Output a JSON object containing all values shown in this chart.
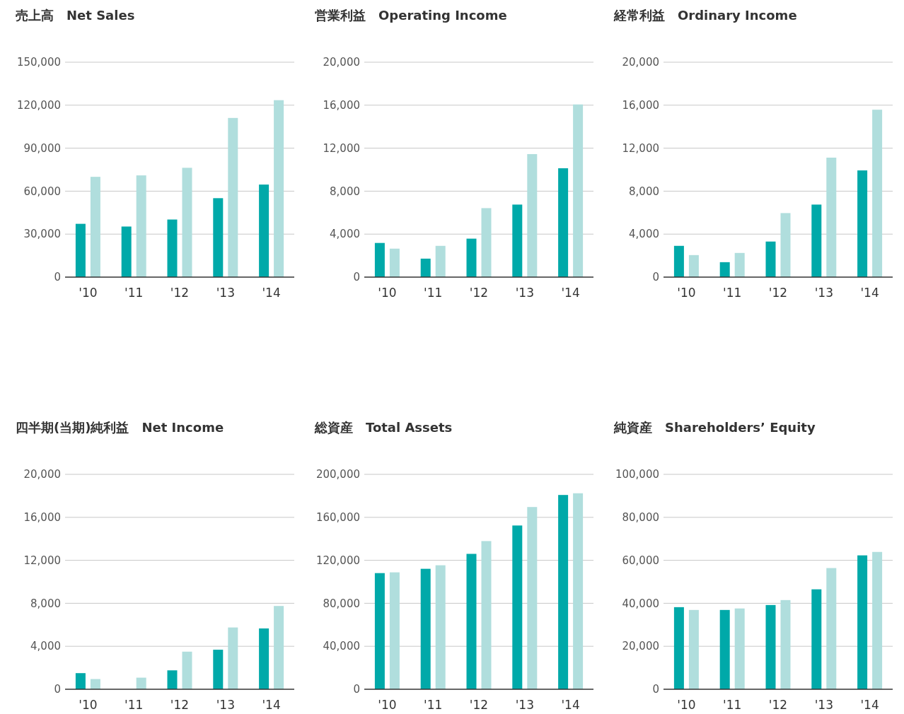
{
  "chart_data": [
    {
      "type": "bar",
      "title": "売上高　Net Sales",
      "categories": [
        "'10",
        "'11",
        "'12",
        "'13",
        "'14"
      ],
      "series": [
        {
          "color": "#00a9a9",
          "values": [
            37200,
            35300,
            40200,
            55100,
            64600
          ]
        },
        {
          "color": "#b0dedd",
          "values": [
            70000,
            71000,
            76300,
            111100,
            123500
          ]
        }
      ],
      "ylim": [
        0,
        150000
      ],
      "yticks": [
        {
          "value": 0,
          "label": "0"
        },
        {
          "value": 30000,
          "label": "30,000"
        },
        {
          "value": 60000,
          "label": "60,000"
        },
        {
          "value": 90000,
          "label": "90,000"
        },
        {
          "value": 120000,
          "label": "120,000"
        },
        {
          "value": 150000,
          "label": "150,000"
        }
      ],
      "grid": "y"
    },
    {
      "type": "bar",
      "title": "営業利益　Operating Income",
      "categories": [
        "'10",
        "'11",
        "'12",
        "'13",
        "'14"
      ],
      "series": [
        {
          "color": "#00a9a9",
          "values": [
            3180,
            1720,
            3580,
            6750,
            10130
          ]
        },
        {
          "color": "#b0dedd",
          "values": [
            2650,
            2910,
            6420,
            11450,
            16070
          ]
        }
      ],
      "ylim": [
        0,
        20000
      ],
      "yticks": [
        {
          "value": 0,
          "label": "0"
        },
        {
          "value": 4000,
          "label": "4,000"
        },
        {
          "value": 8000,
          "label": "8,000"
        },
        {
          "value": 12000,
          "label": "12,000"
        },
        {
          "value": 16000,
          "label": "16,000"
        },
        {
          "value": 20000,
          "label": "20,000"
        }
      ],
      "grid": "y"
    },
    {
      "type": "bar",
      "title": "経常利益　Ordinary Income",
      "categories": [
        "'10",
        "'11",
        "'12",
        "'13",
        "'14"
      ],
      "series": [
        {
          "color": "#00a9a9",
          "values": [
            2910,
            1390,
            3310,
            6750,
            9930
          ]
        },
        {
          "color": "#b0dedd",
          "values": [
            2050,
            2250,
            5960,
            11120,
            15580
          ]
        }
      ],
      "ylim": [
        0,
        20000
      ],
      "yticks": [
        {
          "value": 0,
          "label": "0"
        },
        {
          "value": 4000,
          "label": "4,000"
        },
        {
          "value": 8000,
          "label": "8,000"
        },
        {
          "value": 12000,
          "label": "12,000"
        },
        {
          "value": 16000,
          "label": "16,000"
        },
        {
          "value": 20000,
          "label": "20,000"
        }
      ],
      "grid": "y"
    },
    {
      "type": "bar",
      "title": "四半期(当期)純利益　Net Income",
      "categories": [
        "'10",
        "'11",
        "'12",
        "'13",
        "'14"
      ],
      "series": [
        {
          "color": "#00a9a9",
          "values": [
            1500,
            null,
            1760,
            3680,
            5660
          ]
        },
        {
          "color": "#b0dedd",
          "values": [
            950,
            1080,
            3500,
            5750,
            7750
          ]
        }
      ],
      "ylim": [
        0,
        20000
      ],
      "yticks": [
        {
          "value": 0,
          "label": "0"
        },
        {
          "value": 4000,
          "label": "4,000"
        },
        {
          "value": 8000,
          "label": "8,000"
        },
        {
          "value": 12000,
          "label": "12,000"
        },
        {
          "value": 16000,
          "label": "16,000"
        },
        {
          "value": 20000,
          "label": "20,000"
        }
      ],
      "grid": "y"
    },
    {
      "type": "bar",
      "title": "総資産　Total Assets",
      "categories": [
        "'10",
        "'11",
        "'12",
        "'13",
        "'14"
      ],
      "series": [
        {
          "color": "#00a9a9",
          "values": [
            108100,
            112100,
            126000,
            152400,
            180800
          ]
        },
        {
          "color": "#b0dedd",
          "values": [
            108800,
            115400,
            137900,
            169600,
            182400
          ]
        }
      ],
      "ylim": [
        0,
        200000
      ],
      "yticks": [
        {
          "value": 0,
          "label": "0"
        },
        {
          "value": 40000,
          "label": "40,000"
        },
        {
          "value": 80000,
          "label": "80,000"
        },
        {
          "value": 120000,
          "label": "120,000"
        },
        {
          "value": 160000,
          "label": "160,000"
        },
        {
          "value": 200000,
          "label": "200,000"
        }
      ],
      "grid": "y"
    },
    {
      "type": "bar",
      "title": "純資産　Shareholders’ Equity",
      "categories": [
        "'10",
        "'11",
        "'12",
        "'13",
        "'14"
      ],
      "series": [
        {
          "color": "#00a9a9",
          "values": [
            38200,
            36900,
            39200,
            46500,
            62300
          ]
        },
        {
          "color": "#b0dedd",
          "values": [
            36900,
            37600,
            41500,
            56400,
            63900
          ]
        }
      ],
      "ylim": [
        0,
        100000
      ],
      "yticks": [
        {
          "value": 0,
          "label": "0"
        },
        {
          "value": 20000,
          "label": "20,000"
        },
        {
          "value": 40000,
          "label": "40,000"
        },
        {
          "value": 60000,
          "label": "60,000"
        },
        {
          "value": 80000,
          "label": "80,000"
        },
        {
          "value": 100000,
          "label": "100,000"
        }
      ],
      "grid": "y"
    }
  ]
}
